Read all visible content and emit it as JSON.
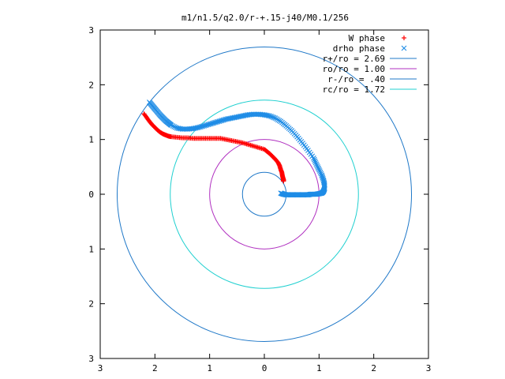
{
  "chart_data": {
    "type": "scatter",
    "title": "m1/n1.5/q2.0/r-+.15-j40/M0.1/256",
    "xlim": [
      -3,
      3
    ],
    "ylim": [
      -3,
      3
    ],
    "xticks": [
      -3,
      -2,
      -1,
      0,
      1,
      2,
      3
    ],
    "yticks": [
      -3,
      -2,
      -1,
      0,
      1,
      2,
      3
    ],
    "xtick_labels": [
      "3",
      "2",
      "1",
      "0",
      "1",
      "2",
      "3"
    ],
    "ytick_labels": [
      "3",
      "2",
      "1",
      "0",
      "1",
      "2",
      "3"
    ],
    "grid": false,
    "legend_position": "top-right",
    "series": [
      {
        "name": "W phase",
        "kind": "points",
        "marker": "plus",
        "color": "#ff0000",
        "x": [
          -2.2,
          -2.15,
          -2.1,
          -2.05,
          -2.0,
          -1.95,
          -1.9,
          -1.85,
          -1.8,
          -1.75,
          -1.7,
          -1.6,
          -1.5,
          -1.4,
          -1.3,
          -1.2,
          -1.1,
          -1.0,
          -0.9,
          -0.8,
          -0.7,
          -0.6,
          -0.5,
          -0.4,
          -0.3,
          -0.2,
          -0.1,
          0.0,
          0.05,
          0.1,
          0.15,
          0.2,
          0.25,
          0.28,
          0.3,
          0.32,
          0.33,
          0.34,
          0.35,
          0.35,
          0.35
        ],
        "y": [
          1.47,
          1.4,
          1.33,
          1.27,
          1.22,
          1.17,
          1.13,
          1.1,
          1.08,
          1.06,
          1.05,
          1.04,
          1.03,
          1.03,
          1.02,
          1.02,
          1.02,
          1.02,
          1.02,
          1.02,
          1.0,
          0.98,
          0.96,
          0.94,
          0.91,
          0.88,
          0.85,
          0.82,
          0.78,
          0.74,
          0.69,
          0.64,
          0.58,
          0.52,
          0.45,
          0.4,
          0.34,
          0.3,
          0.27,
          0.25,
          0.24
        ]
      },
      {
        "name": "drho phase",
        "kind": "points",
        "marker": "cross",
        "color": "#1e8ce6",
        "x": [
          -2.1,
          -2.05,
          -2.0,
          -1.95,
          -1.9,
          -1.85,
          -1.8,
          -1.75,
          -1.7,
          -1.6,
          -1.5,
          -1.4,
          -1.3,
          -1.2,
          -1.1,
          -1.0,
          -0.9,
          -0.8,
          -0.7,
          -0.6,
          -0.5,
          -0.4,
          -0.3,
          -0.2,
          -0.1,
          0.0,
          0.1,
          0.2,
          0.3,
          0.4,
          0.5,
          0.6,
          0.7,
          0.8,
          0.9,
          0.95,
          1.0,
          1.05,
          1.08,
          1.1,
          1.1,
          1.08,
          1.05,
          1.0,
          0.95,
          0.9,
          0.85,
          0.8,
          0.75,
          0.7,
          0.65,
          0.6,
          0.55,
          0.5,
          0.45,
          0.4,
          0.35,
          0.3
        ],
        "y": [
          1.68,
          1.62,
          1.56,
          1.5,
          1.44,
          1.39,
          1.34,
          1.3,
          1.26,
          1.21,
          1.19,
          1.19,
          1.2,
          1.22,
          1.25,
          1.28,
          1.31,
          1.34,
          1.37,
          1.39,
          1.41,
          1.43,
          1.45,
          1.46,
          1.46,
          1.45,
          1.43,
          1.39,
          1.33,
          1.25,
          1.16,
          1.05,
          0.93,
          0.8,
          0.66,
          0.55,
          0.45,
          0.35,
          0.26,
          0.18,
          0.1,
          0.05,
          0.02,
          0.01,
          0.0,
          0.0,
          0.0,
          -0.01,
          -0.01,
          -0.01,
          -0.01,
          -0.01,
          -0.01,
          -0.01,
          -0.01,
          -0.01,
          0.0,
          0.02
        ]
      },
      {
        "name": "r+/ro = 2.69",
        "kind": "circle",
        "radius": 2.69,
        "color": "#1f78c8"
      },
      {
        "name": "ro/ro = 1.00",
        "kind": "circle",
        "radius": 1.0,
        "color": "#b030c0"
      },
      {
        "name": "r-/ro = .40",
        "kind": "circle",
        "radius": 0.4,
        "color": "#1f78c8"
      },
      {
        "name": "rc/ro = 1.72",
        "kind": "circle",
        "radius": 1.72,
        "color": "#20d0d0"
      }
    ]
  }
}
